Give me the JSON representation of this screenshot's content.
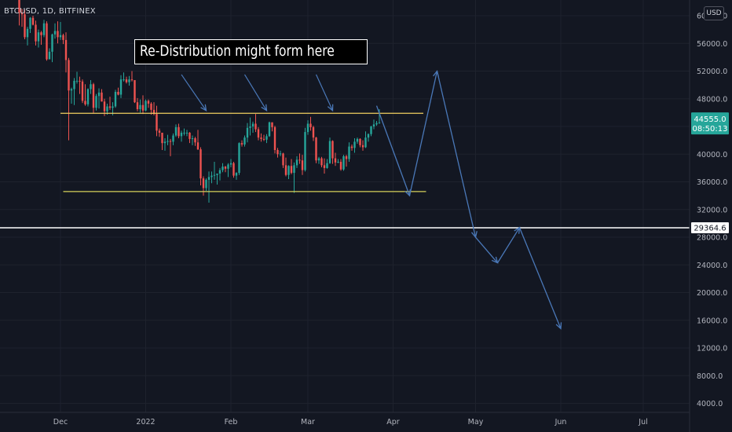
{
  "header": {
    "symbol_line": "BTCUSD, 1D, BITFINEX",
    "currency_button": "USD"
  },
  "annotation": {
    "text": "Re-Distribution might form here"
  },
  "colors": {
    "background": "#131722",
    "up_candle": "#26a69a",
    "down_candle": "#ef5350",
    "resistance_line": "#f0d060",
    "support_line": "#d4d05a",
    "projection_arrow": "#4a78b8",
    "level_line": "#ffffff",
    "price_label": "#26a69a"
  },
  "price_labels": {
    "current_price": "44555.0",
    "countdown": "08:50:13",
    "level_price": "29364.6"
  },
  "chart_data": {
    "type": "candlestick",
    "title": "",
    "xlabel": "",
    "ylabel": "",
    "ylim": [
      2000,
      62000
    ],
    "grid": true,
    "y_ticks": [
      "4000.0",
      "8000.0",
      "12000.0",
      "16000.0",
      "20000.0",
      "24000.0",
      "28000.0",
      "32000.0",
      "36000.0",
      "40000.0",
      "44000.0",
      "48000.0",
      "52000.0",
      "56000.0",
      "60000.0"
    ],
    "x_ticks": [
      {
        "label": "Dec",
        "date": "2021-12-01"
      },
      {
        "label": "2022",
        "date": "2022-01-01"
      },
      {
        "label": "Feb",
        "date": "2022-02-01"
      },
      {
        "label": "Mar",
        "date": "2022-03-01"
      },
      {
        "label": "Apr",
        "date": "2022-04-01"
      },
      {
        "label": "May",
        "date": "2022-05-01"
      },
      {
        "label": "Jun",
        "date": "2022-06-01"
      },
      {
        "label": "Jul",
        "date": "2022-07-01"
      }
    ],
    "xlim": [
      "2021-11-14",
      "2022-07-31"
    ],
    "ohlc": [
      [
        "2021-11-14",
        64400,
        65500,
        63500,
        65500
      ],
      [
        "2021-11-15",
        65500,
        66300,
        63400,
        63600
      ],
      [
        "2021-11-16",
        63600,
        63600,
        58600,
        60400
      ],
      [
        "2021-11-17",
        60400,
        61000,
        58400,
        60200
      ],
      [
        "2021-11-18",
        60200,
        60900,
        56600,
        56900
      ],
      [
        "2021-11-19",
        56900,
        58400,
        55700,
        58100
      ],
      [
        "2021-11-20",
        58100,
        59800,
        57500,
        59700
      ],
      [
        "2021-11-21",
        59700,
        60000,
        58600,
        58700
      ],
      [
        "2021-11-22",
        58700,
        59300,
        55700,
        56300
      ],
      [
        "2021-11-23",
        56300,
        58000,
        55400,
        57600
      ],
      [
        "2021-11-24",
        57600,
        57800,
        55800,
        57200
      ],
      [
        "2021-11-25",
        57200,
        59400,
        56900,
        58900
      ],
      [
        "2021-11-26",
        58900,
        59200,
        53500,
        53700
      ],
      [
        "2021-11-27",
        53700,
        55300,
        53700,
        54800
      ],
      [
        "2021-11-28",
        54800,
        57400,
        53300,
        57300
      ],
      [
        "2021-11-29",
        57300,
        58900,
        56700,
        57800
      ],
      [
        "2021-11-30",
        57800,
        59200,
        56000,
        56900
      ],
      [
        "2021-12-01",
        56900,
        59100,
        56500,
        57200
      ],
      [
        "2021-12-02",
        57200,
        57400,
        55900,
        56500
      ],
      [
        "2021-12-03",
        56500,
        57600,
        51800,
        53600
      ],
      [
        "2021-12-04",
        53600,
        53900,
        42000,
        49200
      ],
      [
        "2021-12-05",
        49200,
        49600,
        47300,
        49400
      ],
      [
        "2021-12-06",
        49400,
        51000,
        47100,
        50600
      ],
      [
        "2021-12-07",
        50600,
        51900,
        50200,
        50600
      ],
      [
        "2021-12-08",
        50600,
        51200,
        48700,
        50500
      ],
      [
        "2021-12-09",
        50500,
        50800,
        47400,
        47700
      ],
      [
        "2021-12-10",
        47700,
        50100,
        47000,
        47200
      ],
      [
        "2021-12-11",
        47200,
        49500,
        46900,
        49400
      ],
      [
        "2021-12-12",
        49400,
        50700,
        48700,
        50100
      ],
      [
        "2021-12-13",
        50100,
        50300,
        45900,
        46700
      ],
      [
        "2021-12-14",
        46700,
        48700,
        46300,
        48400
      ],
      [
        "2021-12-15",
        48400,
        49500,
        46600,
        48900
      ],
      [
        "2021-12-16",
        48900,
        49400,
        47600,
        47600
      ],
      [
        "2021-12-17",
        47600,
        48000,
        45500,
        46200
      ],
      [
        "2021-12-18",
        46200,
        47300,
        45700,
        46900
      ],
      [
        "2021-12-19",
        46900,
        48300,
        46400,
        46700
      ],
      [
        "2021-12-20",
        46700,
        47500,
        45600,
        46900
      ],
      [
        "2021-12-21",
        46900,
        49300,
        46700,
        49000
      ],
      [
        "2021-12-22",
        49000,
        49600,
        48500,
        48600
      ],
      [
        "2021-12-23",
        48600,
        51400,
        48100,
        50800
      ],
      [
        "2021-12-24",
        50800,
        51800,
        50500,
        50800
      ],
      [
        "2021-12-25",
        50800,
        51200,
        50200,
        50400
      ],
      [
        "2021-12-26",
        50400,
        51300,
        49900,
        50800
      ],
      [
        "2021-12-27",
        50800,
        52000,
        50500,
        50700
      ],
      [
        "2021-12-28",
        50700,
        50700,
        47400,
        47500
      ],
      [
        "2021-12-29",
        47500,
        48100,
        46200,
        46500
      ],
      [
        "2021-12-30",
        46500,
        47900,
        46000,
        47100
      ],
      [
        "2021-12-31",
        47100,
        48500,
        45800,
        46300
      ],
      [
        "2022-01-01",
        46300,
        47900,
        46200,
        47700
      ],
      [
        "2022-01-02",
        47700,
        47900,
        46700,
        47300
      ],
      [
        "2022-01-03",
        47300,
        47500,
        45700,
        46400
      ],
      [
        "2022-01-04",
        46400,
        47500,
        45600,
        45800
      ],
      [
        "2022-01-05",
        45800,
        47000,
        42600,
        43400
      ],
      [
        "2022-01-06",
        43400,
        43700,
        42500,
        43100
      ],
      [
        "2022-01-07",
        43100,
        43100,
        40600,
        41600
      ],
      [
        "2022-01-08",
        41600,
        42300,
        40500,
        41800
      ],
      [
        "2022-01-09",
        41800,
        42800,
        41300,
        41900
      ],
      [
        "2022-01-10",
        41900,
        42200,
        39700,
        41800
      ],
      [
        "2022-01-11",
        41800,
        43000,
        41300,
        42700
      ],
      [
        "2022-01-12",
        42700,
        44300,
        42500,
        43900
      ],
      [
        "2022-01-13",
        43900,
        44400,
        42300,
        42600
      ],
      [
        "2022-01-14",
        42600,
        43400,
        41800,
        43100
      ],
      [
        "2022-01-15",
        43100,
        43700,
        42700,
        43100
      ],
      [
        "2022-01-16",
        43100,
        43500,
        42600,
        43100
      ],
      [
        "2022-01-17",
        43100,
        43200,
        41600,
        42200
      ],
      [
        "2022-01-18",
        42200,
        42700,
        41300,
        42300
      ],
      [
        "2022-01-19",
        42300,
        42500,
        41200,
        41700
      ],
      [
        "2022-01-20",
        41700,
        43500,
        40600,
        40700
      ],
      [
        "2022-01-21",
        40700,
        41000,
        35500,
        36500
      ],
      [
        "2022-01-22",
        36500,
        36800,
        34000,
        35100
      ],
      [
        "2022-01-23",
        35100,
        36500,
        34700,
        36300
      ],
      [
        "2022-01-24",
        36300,
        37500,
        33000,
        36700
      ],
      [
        "2022-01-25",
        36700,
        37500,
        35800,
        36900
      ],
      [
        "2022-01-26",
        36900,
        38900,
        36300,
        37000
      ],
      [
        "2022-01-27",
        37000,
        37200,
        35600,
        37200
      ],
      [
        "2022-01-28",
        37200,
        38000,
        36200,
        37700
      ],
      [
        "2022-01-29",
        37700,
        38700,
        37400,
        38200
      ],
      [
        "2022-01-30",
        38200,
        38300,
        37400,
        37900
      ],
      [
        "2022-01-31",
        37900,
        38700,
        36700,
        38500
      ],
      [
        "2022-02-01",
        38500,
        39300,
        38100,
        38700
      ],
      [
        "2022-02-02",
        38700,
        38900,
        36600,
        36900
      ],
      [
        "2022-02-03",
        36900,
        37400,
        36300,
        37300
      ],
      [
        "2022-02-04",
        37300,
        41700,
        37000,
        41600
      ],
      [
        "2022-02-05",
        41600,
        42000,
        41100,
        41400
      ],
      [
        "2022-02-06",
        41400,
        42700,
        41100,
        42400
      ],
      [
        "2022-02-07",
        42400,
        44500,
        41700,
        43800
      ],
      [
        "2022-02-08",
        43800,
        45300,
        42700,
        44000
      ],
      [
        "2022-02-09",
        44000,
        44700,
        43100,
        44400
      ],
      [
        "2022-02-10",
        44400,
        45800,
        43200,
        43600
      ],
      [
        "2022-02-11",
        43600,
        43900,
        42000,
        42400
      ],
      [
        "2022-02-12",
        42400,
        43000,
        41800,
        42200
      ],
      [
        "2022-02-13",
        42200,
        42800,
        41900,
        42100
      ],
      [
        "2022-02-14",
        42100,
        42900,
        41600,
        42600
      ],
      [
        "2022-02-15",
        42600,
        44700,
        42500,
        44600
      ],
      [
        "2022-02-16",
        44600,
        44600,
        43300,
        43900
      ],
      [
        "2022-02-17",
        43900,
        44100,
        40100,
        40600
      ],
      [
        "2022-02-18",
        40600,
        40900,
        39500,
        40000
      ],
      [
        "2022-02-19",
        40000,
        40500,
        39700,
        40100
      ],
      [
        "2022-02-20",
        40100,
        40200,
        38000,
        38400
      ],
      [
        "2022-02-21",
        38400,
        39500,
        36800,
        37000
      ],
      [
        "2022-02-22",
        37000,
        38400,
        36400,
        38300
      ],
      [
        "2022-02-23",
        38300,
        39300,
        37100,
        37300
      ],
      [
        "2022-02-24",
        37300,
        38800,
        34400,
        38400
      ],
      [
        "2022-02-25",
        38400,
        39700,
        38000,
        39200
      ],
      [
        "2022-02-26",
        39200,
        40100,
        38600,
        39100
      ],
      [
        "2022-02-27",
        39100,
        39900,
        37000,
        37700
      ],
      [
        "2022-02-28",
        37700,
        43800,
        37500,
        43200
      ],
      [
        "2022-03-01",
        43200,
        44900,
        42800,
        44400
      ],
      [
        "2022-03-02",
        44400,
        45400,
        43400,
        43900
      ],
      [
        "2022-03-03",
        43900,
        44100,
        41900,
        42400
      ],
      [
        "2022-03-04",
        42400,
        42500,
        38700,
        39100
      ],
      [
        "2022-03-05",
        39100,
        39600,
        38600,
        39400
      ],
      [
        "2022-03-06",
        39400,
        39600,
        38100,
        38400
      ],
      [
        "2022-03-07",
        38400,
        39400,
        37200,
        38000
      ],
      [
        "2022-03-08",
        38000,
        39300,
        37900,
        38700
      ],
      [
        "2022-03-09",
        38700,
        42400,
        38600,
        41900
      ],
      [
        "2022-03-10",
        41900,
        42000,
        38600,
        39400
      ],
      [
        "2022-03-11",
        39400,
        40200,
        38300,
        38800
      ],
      [
        "2022-03-12",
        38800,
        39300,
        38700,
        38900
      ],
      [
        "2022-03-13",
        38900,
        39300,
        37600,
        37800
      ],
      [
        "2022-03-14",
        37800,
        39900,
        37600,
        39700
      ],
      [
        "2022-03-15",
        39700,
        39900,
        38200,
        39300
      ],
      [
        "2022-03-16",
        39300,
        41700,
        38900,
        41100
      ],
      [
        "2022-03-17",
        41100,
        41400,
        40500,
        40900
      ],
      [
        "2022-03-18",
        40900,
        42300,
        40200,
        41800
      ],
      [
        "2022-03-19",
        41800,
        42400,
        41500,
        42200
      ],
      [
        "2022-03-20",
        42200,
        42300,
        41000,
        41300
      ],
      [
        "2022-03-21",
        41300,
        42000,
        40500,
        41000
      ],
      [
        "2022-03-22",
        41000,
        43300,
        40900,
        42400
      ],
      [
        "2022-03-23",
        42400,
        43000,
        41800,
        42900
      ],
      [
        "2022-03-24",
        42900,
        44100,
        42600,
        44000
      ],
      [
        "2022-03-25",
        44000,
        45000,
        43600,
        44300
      ],
      [
        "2022-03-26",
        44300,
        44800,
        44100,
        44500
      ],
      [
        "2022-03-27",
        44500,
        46500,
        44400,
        44555
      ]
    ],
    "horizontal_lines": [
      {
        "role": "range-top",
        "price": 45900,
        "from": "2021-12-01",
        "to": "2022-04-12"
      },
      {
        "role": "range-bottom",
        "price": 34600,
        "from": "2021-12-02",
        "to": "2022-04-13"
      },
      {
        "role": "level",
        "price": 29364.6
      }
    ],
    "projection_path": [
      [
        "2022-03-26",
        47000
      ],
      [
        "2022-04-07",
        34000
      ],
      [
        "2022-04-17",
        52000
      ],
      [
        "2022-05-01",
        28000
      ],
      [
        "2022-05-09",
        24300
      ],
      [
        "2022-05-17",
        29400
      ],
      [
        "2022-06-01",
        14800
      ]
    ],
    "callout_pointers": [
      {
        "from": [
          "2022-01-14",
          51500
        ],
        "to": [
          "2022-01-23",
          46300
        ]
      },
      {
        "from": [
          "2022-02-06",
          51500
        ],
        "to": [
          "2022-02-14",
          46300
        ]
      },
      {
        "from": [
          "2022-03-04",
          51500
        ],
        "to": [
          "2022-03-10",
          46300
        ]
      }
    ]
  }
}
